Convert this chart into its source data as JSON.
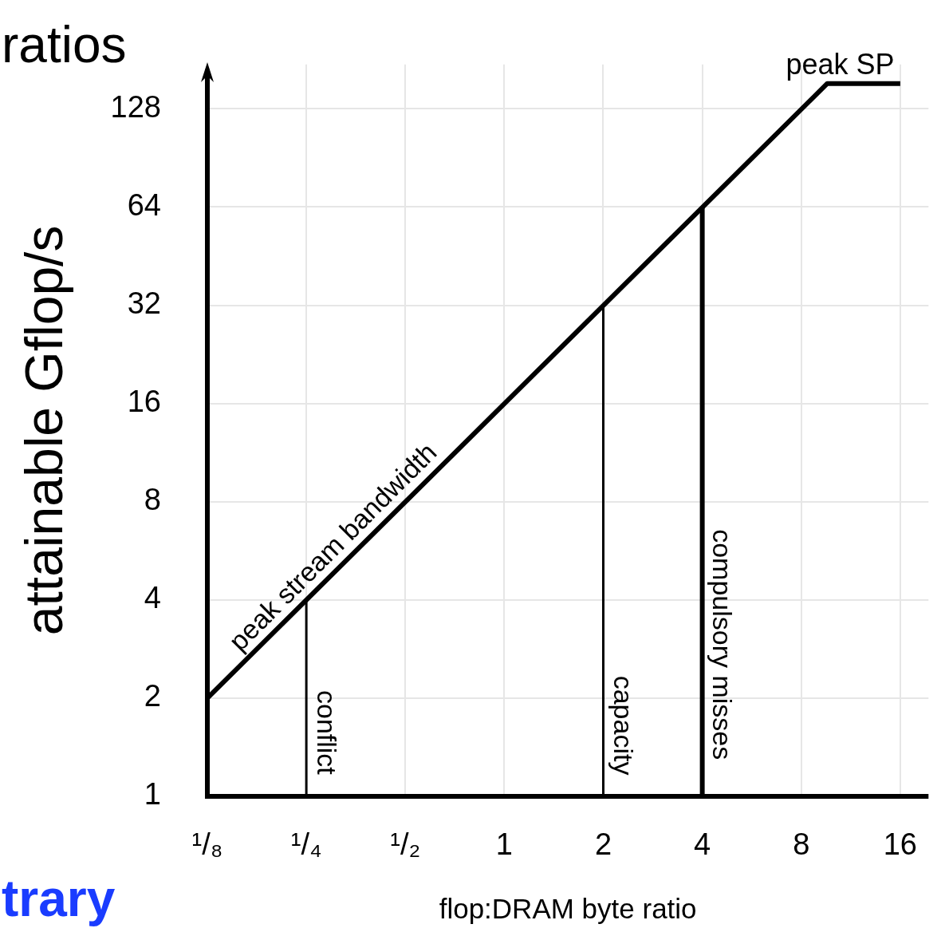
{
  "chart_data": {
    "type": "line",
    "xlabel": "flop:DRAM byte ratio",
    "ylabel": "attainable Gflop/s",
    "log": "xy",
    "xlim": [
      0.125,
      19.5
    ],
    "ylim": [
      1,
      175
    ],
    "xticks": [
      {
        "value": 0.125,
        "label": "¹/₈"
      },
      {
        "value": 0.25,
        "label": "¹/₄"
      },
      {
        "value": 0.5,
        "label": "¹/₂"
      },
      1,
      2,
      4,
      8,
      16
    ],
    "yticks": [
      1,
      2,
      4,
      8,
      16,
      32,
      64,
      128
    ],
    "grid": true,
    "legend": false,
    "marker": "none",
    "line_style": "solid",
    "series": [
      {
        "color": "#000000",
        "x": [
          0.125,
          9.6,
          16
        ],
        "values": [
          2,
          153,
          153
        ]
      },
      {
        "color": "#000000",
        "x": [
          0.25,
          0.25
        ],
        "values": [
          1,
          4
        ]
      },
      {
        "color": "#000000",
        "x": [
          2,
          2
        ],
        "values": [
          1,
          32
        ]
      },
      {
        "color": "#000000",
        "x": [
          4,
          4
        ],
        "values": [
          1,
          64
        ]
      }
    ],
    "annotations": [
      {
        "text": "peak stream bandwidth",
        "x": 0.33,
        "y": 5.3
      },
      {
        "text": "peak SP",
        "x": 10.5,
        "y": 153
      },
      {
        "text": "conflict",
        "x": 0.25,
        "y": 1.57
      },
      {
        "text": "capacity",
        "x": 2,
        "y": 1.65
      },
      {
        "text": "compulsory misses",
        "x": 4,
        "y": 2.92
      },
      "ratios",
      "trary"
    ]
  }
}
